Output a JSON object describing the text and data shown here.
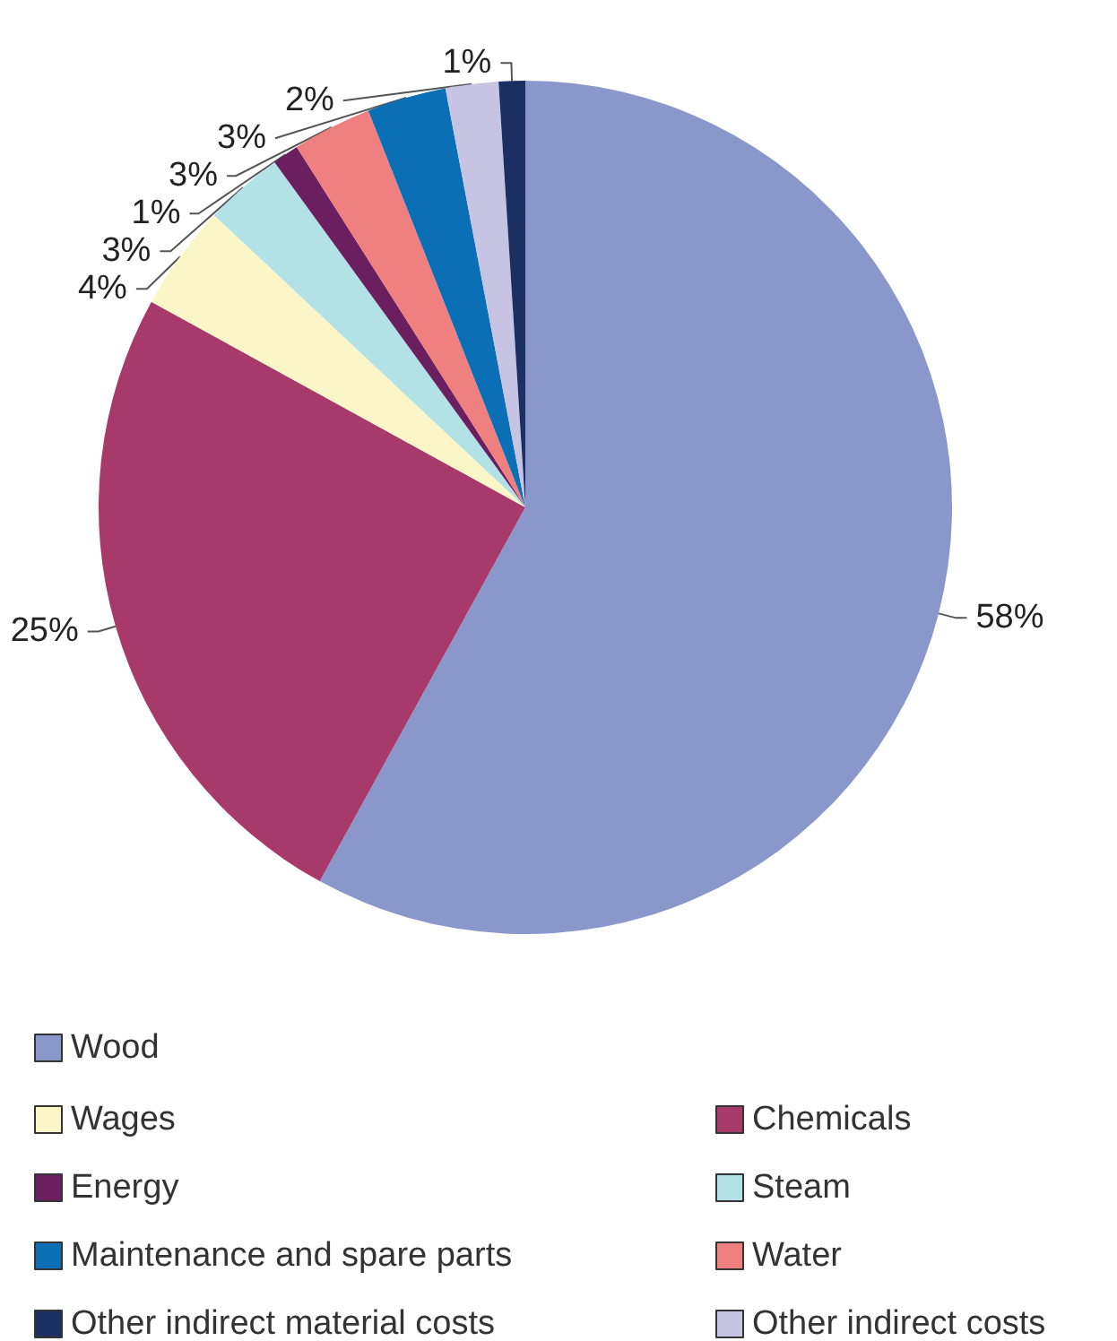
{
  "chart_data": {
    "type": "pie",
    "categories": [
      "Wood",
      "Chemicals",
      "Wages",
      "Steam",
      "Energy",
      "Water",
      "Maintenance and spare parts",
      "Other indirect costs",
      "Other indirect material costs"
    ],
    "values": [
      58,
      25,
      4,
      3,
      1,
      3,
      3,
      2,
      1
    ],
    "colors": [
      "#8a97cb",
      "#a83a6b",
      "#fbf6c7",
      "#b2e1e6",
      "#6b1f5f",
      "#f08080",
      "#0a6fb5",
      "#c6c3e3",
      "#1c2f63"
    ],
    "value_labels": [
      "58%",
      "25%",
      "4%",
      "3%",
      "1%",
      "3%",
      "3%",
      "2%",
      "1%"
    ],
    "legend": "bottom"
  }
}
